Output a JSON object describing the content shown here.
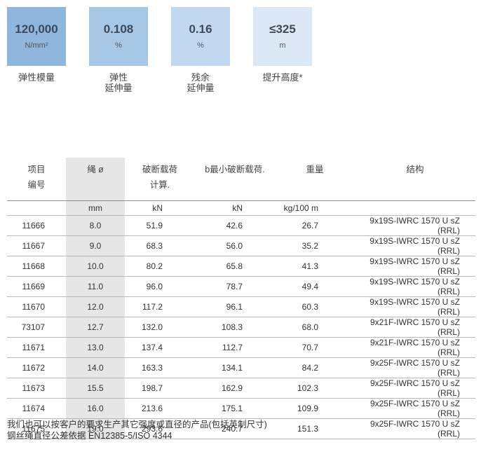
{
  "specs": [
    {
      "value": "120,000",
      "unit": "N/mm²",
      "label": [
        "弹性模量"
      ]
    },
    {
      "value": "0.108",
      "unit": "%",
      "label": [
        "弹性",
        "延伸量"
      ]
    },
    {
      "value": "0.16",
      "unit": "%",
      "label": [
        "残余",
        "延伸量"
      ]
    },
    {
      "value": "≤325",
      "unit": "m",
      "label": [
        "提升高度*"
      ]
    }
  ],
  "table": {
    "headers": [
      [
        "项目",
        "编号"
      ],
      [
        "绳 ø"
      ],
      [
        "破断载荷",
        "计算."
      ],
      [
        "b最小破断载荷."
      ],
      [
        "重量"
      ],
      [
        "结构"
      ]
    ],
    "units": [
      "",
      "mm",
      "kN",
      "kN",
      "kg/100 m",
      ""
    ],
    "rows": [
      [
        "11666",
        "8.0",
        "51.9",
        "42.6",
        "26.7",
        "9x19S-IWRC 1570 U sZ (RRL)"
      ],
      [
        "11667",
        "9.0",
        "68.3",
        "56.0",
        "35.2",
        "9x19S-IWRC 1570 U sZ (RRL)"
      ],
      [
        "11668",
        "10.0",
        "80.2",
        "65.8",
        "41.3",
        "9x19S-IWRC 1570 U sZ (RRL)"
      ],
      [
        "11669",
        "11.0",
        "96.0",
        "78.7",
        "49.4",
        "9x19S-IWRC 1570 U sZ (RRL)"
      ],
      [
        "11670",
        "12.0",
        "117.2",
        "96.1",
        "60.3",
        "9x19S-IWRC 1570 U sZ (RRL)"
      ],
      [
        "73107",
        "12.7",
        "132.0",
        "108.3",
        "68.0",
        "9x21F-IWRC 1570 U sZ (RRL)"
      ],
      [
        "11671",
        "13.0",
        "137.4",
        "112.7",
        "70.7",
        "9x21F-IWRC 1570 U sZ (RRL)"
      ],
      [
        "11672",
        "14.0",
        "163.3",
        "134.1",
        "84.2",
        "9x25F-IWRC 1570 U sZ (RRL)"
      ],
      [
        "11673",
        "15.5",
        "198.7",
        "162.9",
        "102.3",
        "9x25F-IWRC 1570 U sZ (RRL)"
      ],
      [
        "11674",
        "16.0",
        "213.6",
        "175.1",
        "109.9",
        "9x25F-IWRC 1570 U sZ (RRL)"
      ],
      [
        "11675",
        "19.0",
        "293.6",
        "240.7",
        "151.3",
        "9x25F-IWRC 1570 U sZ (RRL)"
      ]
    ]
  },
  "notes": [
    "我们也可以按客户的要求生产其它强度或直径的产品(包括英制尺寸)",
    "钢丝绳直径公差依据 EN12385-5/ISO 4344"
  ]
}
